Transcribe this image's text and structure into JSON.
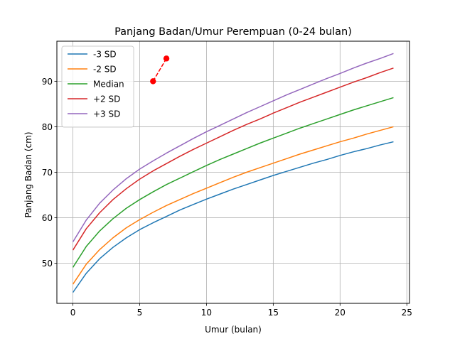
{
  "chart_data": {
    "type": "line",
    "title": "Panjang Badan/Umur Perempuan (0-24 bulan)",
    "xlabel": "Umur (bulan)",
    "ylabel": "Panjang Badan (cm)",
    "xlim": [
      -1.2,
      25.2
    ],
    "ylim": [
      41.2,
      98.8
    ],
    "xticks": [
      0,
      5,
      10,
      15,
      20,
      25
    ],
    "yticks": [
      50,
      60,
      70,
      80,
      90
    ],
    "grid": true,
    "legend_position": "upper-left",
    "x": [
      0,
      1,
      2,
      3,
      4,
      5,
      6,
      7,
      8,
      9,
      10,
      11,
      12,
      13,
      14,
      15,
      16,
      17,
      18,
      19,
      20,
      21,
      22,
      23,
      24
    ],
    "series": [
      {
        "name": "-3 SD",
        "color": "#1f77b4",
        "values": [
          43.6,
          47.8,
          51.0,
          53.5,
          55.6,
          57.4,
          58.9,
          60.3,
          61.7,
          62.9,
          64.1,
          65.2,
          66.3,
          67.3,
          68.3,
          69.3,
          70.2,
          71.1,
          72.0,
          72.8,
          73.7,
          74.5,
          75.2,
          76.0,
          76.7
        ]
      },
      {
        "name": "-2 SD",
        "color": "#ff7f0e",
        "values": [
          45.4,
          49.8,
          53.0,
          55.6,
          57.8,
          59.6,
          61.2,
          62.7,
          64.0,
          65.3,
          66.5,
          67.7,
          68.9,
          70.0,
          71.0,
          72.0,
          73.0,
          74.0,
          74.9,
          75.8,
          76.7,
          77.5,
          78.4,
          79.2,
          80.0
        ]
      },
      {
        "name": "Median",
        "color": "#2ca02c",
        "values": [
          49.1,
          53.7,
          57.1,
          59.8,
          62.1,
          64.0,
          65.7,
          67.3,
          68.7,
          70.1,
          71.5,
          72.8,
          74.0,
          75.2,
          76.4,
          77.5,
          78.6,
          79.7,
          80.7,
          81.7,
          82.7,
          83.7,
          84.6,
          85.5,
          86.4
        ]
      },
      {
        "name": "+2 SD",
        "color": "#d62728",
        "values": [
          52.9,
          57.6,
          61.1,
          64.0,
          66.4,
          68.5,
          70.3,
          71.9,
          73.5,
          75.0,
          76.4,
          77.8,
          79.2,
          80.5,
          81.7,
          83.0,
          84.2,
          85.4,
          86.5,
          87.6,
          88.7,
          89.8,
          90.8,
          91.9,
          92.9
        ]
      },
      {
        "name": "+3 SD",
        "color": "#9467bd",
        "values": [
          54.7,
          59.5,
          63.2,
          66.1,
          68.6,
          70.7,
          72.5,
          74.2,
          75.8,
          77.4,
          78.9,
          80.3,
          81.7,
          83.1,
          84.4,
          85.7,
          87.0,
          88.2,
          89.4,
          90.6,
          91.7,
          92.9,
          94.0,
          95.0,
          96.1
        ]
      }
    ],
    "measurements": {
      "color": "#ff0000",
      "line_style": "dashed",
      "points": [
        {
          "x": 6,
          "y": 90
        },
        {
          "x": 7,
          "y": 95
        }
      ]
    }
  }
}
